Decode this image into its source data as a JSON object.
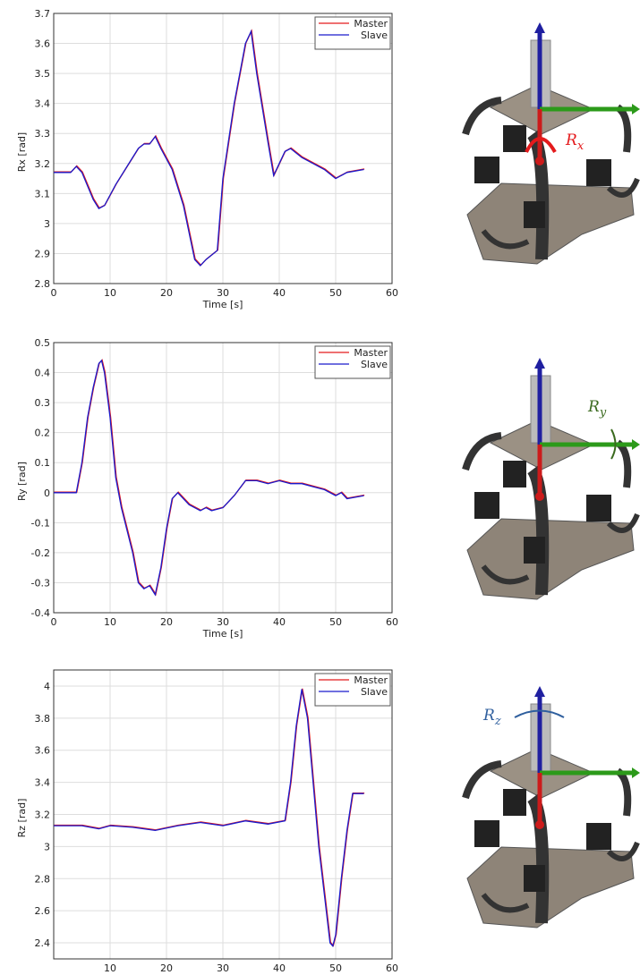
{
  "chart_data": [
    {
      "type": "line",
      "xlabel": "Time [s]",
      "ylabel": "Rx [rad]",
      "xlim": [
        0,
        60
      ],
      "ylim": [
        2.8,
        3.7
      ],
      "xticks": [
        0,
        10,
        20,
        30,
        40,
        50,
        60
      ],
      "yticks": [
        2.8,
        2.9,
        3,
        3.1,
        3.2,
        3.3,
        3.4,
        3.5,
        3.6,
        3.7
      ],
      "grid": true,
      "legend": "upper right",
      "x": [
        0,
        3,
        4,
        5,
        7,
        8,
        9,
        11,
        13,
        15,
        16,
        17,
        18,
        19,
        21,
        23,
        25,
        26,
        27,
        29,
        30,
        32,
        34,
        35,
        36,
        38,
        39,
        40,
        41,
        42,
        44,
        46,
        48,
        50,
        52,
        55
      ],
      "series": [
        {
          "name": "Master",
          "color": "#e41a1c",
          "values": [
            3.17,
            3.17,
            3.19,
            3.17,
            3.08,
            3.05,
            3.06,
            3.13,
            3.19,
            3.25,
            3.265,
            3.265,
            3.29,
            3.25,
            3.18,
            3.06,
            2.88,
            2.86,
            2.88,
            2.91,
            3.15,
            3.4,
            3.6,
            3.64,
            3.5,
            3.27,
            3.16,
            3.2,
            3.24,
            3.25,
            3.22,
            3.2,
            3.18,
            3.15,
            3.17,
            3.18
          ]
        },
        {
          "name": "Slave",
          "color": "#1a1acc",
          "values": [
            3.17,
            3.17,
            3.19,
            3.17,
            3.08,
            3.05,
            3.06,
            3.13,
            3.19,
            3.25,
            3.265,
            3.265,
            3.29,
            3.25,
            3.18,
            3.06,
            2.88,
            2.86,
            2.88,
            2.91,
            3.15,
            3.4,
            3.6,
            3.64,
            3.5,
            3.27,
            3.16,
            3.2,
            3.24,
            3.25,
            3.22,
            3.2,
            3.18,
            3.15,
            3.17,
            3.18
          ]
        }
      ],
      "annotation": {
        "base": "R",
        "sub": "x",
        "color": "#e41a1c"
      }
    },
    {
      "type": "line",
      "xlabel": "Time [s]",
      "ylabel": "Ry [rad]",
      "xlim": [
        0,
        60
      ],
      "ylim": [
        -0.4,
        0.5
      ],
      "xticks": [
        0,
        10,
        20,
        30,
        40,
        50,
        60
      ],
      "yticks": [
        -0.4,
        -0.3,
        -0.2,
        -0.1,
        0,
        0.1,
        0.2,
        0.3,
        0.4,
        0.5
      ],
      "grid": true,
      "legend": "upper right",
      "x": [
        0,
        4,
        5,
        6,
        7,
        8,
        8.5,
        9,
        10,
        11,
        12,
        14,
        15,
        16,
        17,
        18,
        19,
        20,
        21,
        22,
        24,
        26,
        27,
        28,
        30,
        32,
        34,
        36,
        38,
        40,
        42,
        44,
        46,
        48,
        50,
        51,
        52,
        55
      ],
      "series": [
        {
          "name": "Master",
          "color": "#e41a1c",
          "values": [
            0,
            0,
            0.1,
            0.25,
            0.35,
            0.43,
            0.44,
            0.4,
            0.25,
            0.05,
            -0.05,
            -0.2,
            -0.3,
            -0.32,
            -0.31,
            -0.34,
            -0.25,
            -0.12,
            -0.02,
            0,
            -0.04,
            -0.06,
            -0.05,
            -0.06,
            -0.05,
            -0.01,
            0.04,
            0.04,
            0.03,
            0.04,
            0.03,
            0.03,
            0.02,
            0.01,
            -0.01,
            0,
            -0.02,
            -0.01
          ]
        },
        {
          "name": "Slave",
          "color": "#1a1acc",
          "values": [
            0,
            0,
            0.1,
            0.25,
            0.35,
            0.43,
            0.44,
            0.4,
            0.25,
            0.05,
            -0.05,
            -0.2,
            -0.3,
            -0.32,
            -0.31,
            -0.34,
            -0.25,
            -0.12,
            -0.02,
            0,
            -0.04,
            -0.06,
            -0.05,
            -0.06,
            -0.05,
            -0.01,
            0.04,
            0.04,
            0.03,
            0.04,
            0.03,
            0.03,
            0.02,
            0.01,
            -0.01,
            0,
            -0.02,
            -0.01
          ]
        }
      ],
      "annotation": {
        "base": "R",
        "sub": "y",
        "color": "#3a6a1e"
      }
    },
    {
      "type": "line",
      "xlabel": "Time [s]",
      "ylabel": "Rz [rad]",
      "xlim": [
        0,
        60
      ],
      "ylim": [
        2.3,
        4.1
      ],
      "xticks": [
        10,
        20,
        30,
        40,
        50,
        60
      ],
      "yticks": [
        2.4,
        2.6,
        2.8,
        3,
        3.2,
        3.4,
        3.6,
        3.8,
        4
      ],
      "grid": true,
      "legend": "upper right",
      "x": [
        0,
        5,
        8,
        10,
        14,
        18,
        22,
        26,
        30,
        34,
        38,
        41,
        42,
        43,
        44,
        45,
        46,
        47,
        48,
        49,
        49.5,
        50,
        51,
        52,
        53,
        55
      ],
      "series": [
        {
          "name": "Master",
          "color": "#e41a1c",
          "values": [
            3.13,
            3.13,
            3.11,
            3.13,
            3.12,
            3.1,
            3.13,
            3.15,
            3.13,
            3.16,
            3.14,
            3.16,
            3.4,
            3.75,
            3.98,
            3.8,
            3.4,
            3.0,
            2.7,
            2.4,
            2.38,
            2.45,
            2.8,
            3.1,
            3.33,
            3.33
          ]
        },
        {
          "name": "Slave",
          "color": "#1a1acc",
          "values": [
            3.13,
            3.13,
            3.11,
            3.13,
            3.12,
            3.1,
            3.13,
            3.15,
            3.13,
            3.16,
            3.14,
            3.16,
            3.4,
            3.75,
            3.98,
            3.8,
            3.4,
            3.0,
            2.7,
            2.4,
            2.38,
            2.45,
            2.8,
            3.1,
            3.33,
            3.33
          ]
        }
      ],
      "annotation": {
        "base": "R",
        "sub": "z",
        "color": "#2f5f9e"
      }
    }
  ]
}
